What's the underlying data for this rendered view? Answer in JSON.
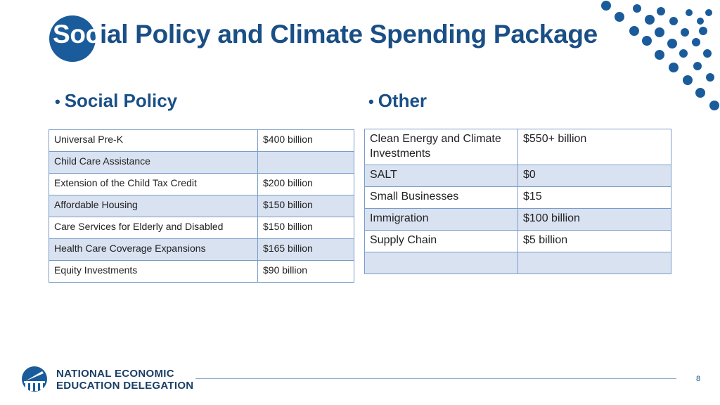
{
  "slide": {
    "title_in_circle": "Soc",
    "title_rest": "ial Policy and Climate Spending Package",
    "page_number": "8"
  },
  "left": {
    "heading": "Social Policy",
    "rows": [
      {
        "item": "Universal Pre-K",
        "amount": "$400 billion"
      },
      {
        "item": "Child Care Assistance",
        "amount": ""
      },
      {
        "item": "Extension of the Child Tax Credit",
        "amount": "$200 billion"
      },
      {
        "item": "Affordable Housing",
        "amount": "$150 billion"
      },
      {
        "item": "Care Services for Elderly and Disabled",
        "amount": "$150 billion"
      },
      {
        "item": "Health Care Coverage Expansions",
        "amount": "$165 billion"
      },
      {
        "item": "Equity Investments",
        "amount": "$90 billion"
      }
    ]
  },
  "right": {
    "heading": "Other",
    "rows": [
      {
        "item": "Clean Energy and Climate Investments",
        "amount": "$550+ billion"
      },
      {
        "item": "SALT",
        "amount": "$0"
      },
      {
        "item": "Small Businesses",
        "amount": "$15"
      },
      {
        "item": "Immigration",
        "amount": "$100 billion"
      },
      {
        "item": "Supply Chain",
        "amount": "$5 billion"
      },
      {
        "item": "",
        "amount": ""
      }
    ]
  },
  "footer": {
    "logo_line1": "NATIONAL ECONOMIC",
    "logo_line2": "EDUCATION DELEGATION"
  },
  "colors": {
    "primary": "#1a5c9b",
    "title_text": "#1a4f86",
    "table_border": "#7a9cc9",
    "table_stripe": "#d9e2f1"
  }
}
